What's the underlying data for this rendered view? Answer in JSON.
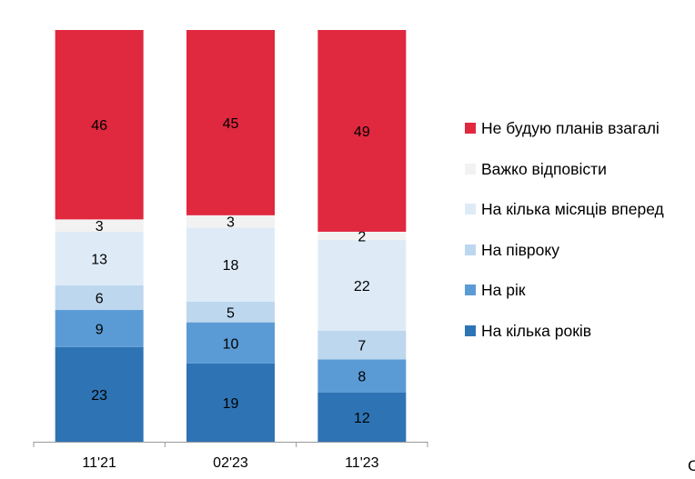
{
  "chart_data": {
    "type": "bar",
    "stacked": true,
    "categories": [
      "11'21",
      "02'23",
      "11'23"
    ],
    "series": [
      {
        "name": "На кілька років",
        "color": "#2E74B5",
        "values": [
          23,
          19,
          12
        ]
      },
      {
        "name": "На рік",
        "color": "#5B9BD5",
        "values": [
          9,
          10,
          8
        ]
      },
      {
        "name": "На півроку",
        "color": "#BDD7EE",
        "values": [
          6,
          5,
          7
        ]
      },
      {
        "name": "На кілька місяців вперед",
        "color": "#DEEBF7",
        "values": [
          13,
          18,
          22
        ]
      },
      {
        "name": "Важко відповісти",
        "color": "#F2F2F2",
        "values": [
          3,
          3,
          2
        ]
      },
      {
        "name": "Не будую планів взагалі",
        "color": "#E0283F",
        "values": [
          46,
          45,
          49
        ]
      }
    ],
    "ylim": [
      0,
      100
    ],
    "grid": false,
    "legend_position": "right",
    "legend_order": [
      "Не будую планів взагалі",
      "Важко відповісти",
      "На кілька місяців вперед",
      "На півроку",
      "На рік",
      "На кілька років"
    ]
  },
  "corner_text": "C"
}
